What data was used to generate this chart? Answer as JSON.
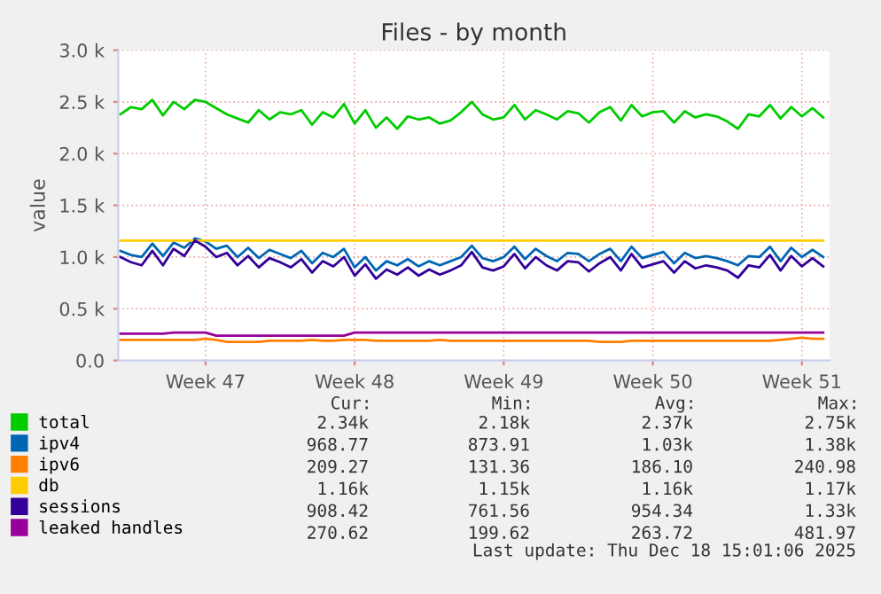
{
  "chart_data": {
    "type": "line",
    "title": "Files - by month",
    "ylabel": "value",
    "categories": [
      null,
      null,
      null,
      null,
      null,
      null,
      null,
      null,
      "Week 47",
      null,
      null,
      null,
      null,
      null,
      null,
      null,
      null,
      null,
      null,
      null,
      null,
      null,
      "Week 48",
      null,
      null,
      null,
      null,
      null,
      null,
      null,
      null,
      null,
      null,
      null,
      null,
      null,
      "Week 49",
      null,
      null,
      null,
      null,
      null,
      null,
      null,
      null,
      null,
      null,
      null,
      null,
      null,
      "Week 50",
      null,
      null,
      null,
      null,
      null,
      null,
      null,
      null,
      null,
      null,
      null,
      null,
      null,
      "Week 51",
      null,
      null
    ],
    "series": [
      {
        "name": "total",
        "color": "#00cc00",
        "values": [
          2380,
          2450,
          2430,
          2520,
          2370,
          2500,
          2430,
          2520,
          2500,
          2440,
          2380,
          2340,
          2300,
          2420,
          2330,
          2400,
          2380,
          2420,
          2280,
          2400,
          2350,
          2480,
          2290,
          2420,
          2250,
          2350,
          2240,
          2360,
          2330,
          2350,
          2290,
          2320,
          2400,
          2500,
          2380,
          2330,
          2350,
          2470,
          2330,
          2420,
          2380,
          2330,
          2410,
          2390,
          2300,
          2400,
          2450,
          2320,
          2470,
          2360,
          2400,
          2410,
          2300,
          2410,
          2350,
          2380,
          2360,
          2310,
          2240,
          2380,
          2360,
          2470,
          2340,
          2450,
          2360,
          2440,
          2350
        ]
      },
      {
        "name": "ipv4",
        "color": "#0066b3",
        "values": [
          1060,
          1020,
          1000,
          1130,
          1010,
          1140,
          1090,
          1180,
          1150,
          1080,
          1110,
          1000,
          1090,
          990,
          1070,
          1030,
          990,
          1060,
          940,
          1040,
          1000,
          1080,
          900,
          1000,
          870,
          960,
          920,
          980,
          910,
          960,
          920,
          960,
          1000,
          1110,
          990,
          960,
          1000,
          1100,
          980,
          1080,
          1010,
          960,
          1040,
          1030,
          960,
          1030,
          1080,
          960,
          1100,
          990,
          1020,
          1050,
          940,
          1040,
          990,
          1010,
          990,
          960,
          920,
          1010,
          1000,
          1100,
          960,
          1090,
          1000,
          1070,
          1000
        ]
      },
      {
        "name": "ipv6",
        "color": "#ff8000",
        "values": [
          200,
          200,
          200,
          200,
          200,
          200,
          200,
          200,
          210,
          200,
          180,
          180,
          180,
          180,
          190,
          190,
          190,
          190,
          200,
          190,
          190,
          200,
          200,
          200,
          190,
          190,
          190,
          190,
          190,
          190,
          200,
          190,
          190,
          190,
          190,
          190,
          190,
          190,
          190,
          190,
          190,
          190,
          190,
          190,
          190,
          180,
          180,
          180,
          190,
          190,
          190,
          190,
          190,
          190,
          190,
          190,
          190,
          190,
          190,
          190,
          190,
          190,
          200,
          210,
          220,
          210,
          210
        ]
      },
      {
        "name": "db",
        "color": "#ffcc00",
        "values": [
          1160,
          1160,
          1160,
          1160,
          1160,
          1160,
          1160,
          1160,
          1160,
          1160,
          1160,
          1160,
          1160,
          1160,
          1160,
          1160,
          1160,
          1160,
          1160,
          1160,
          1160,
          1160,
          1160,
          1160,
          1160,
          1160,
          1160,
          1160,
          1160,
          1160,
          1160,
          1160,
          1160,
          1160,
          1160,
          1160,
          1160,
          1160,
          1160,
          1160,
          1160,
          1160,
          1160,
          1160,
          1160,
          1160,
          1160,
          1160,
          1160,
          1160,
          1160,
          1160,
          1160,
          1160,
          1160,
          1160,
          1160,
          1160,
          1160,
          1160,
          1160,
          1160,
          1160,
          1160,
          1160,
          1160,
          1160
        ]
      },
      {
        "name": "sessions",
        "color": "#330099",
        "values": [
          1000,
          950,
          920,
          1060,
          920,
          1080,
          1010,
          1160,
          1100,
          1000,
          1040,
          920,
          1010,
          900,
          990,
          950,
          900,
          980,
          850,
          960,
          910,
          1000,
          820,
          930,
          790,
          880,
          830,
          900,
          820,
          880,
          830,
          870,
          920,
          1050,
          900,
          870,
          910,
          1030,
          890,
          1000,
          920,
          870,
          960,
          950,
          860,
          940,
          1000,
          870,
          1030,
          900,
          930,
          960,
          850,
          960,
          890,
          920,
          900,
          870,
          800,
          920,
          900,
          1020,
          870,
          1010,
          910,
          990,
          910
        ]
      },
      {
        "name": "leaked handles",
        "color": "#990099",
        "values": [
          260,
          260,
          260,
          260,
          260,
          270,
          270,
          270,
          270,
          240,
          240,
          240,
          240,
          240,
          240,
          240,
          240,
          240,
          240,
          240,
          240,
          240,
          270,
          270,
          270,
          270,
          270,
          270,
          270,
          270,
          270,
          270,
          270,
          270,
          270,
          270,
          270,
          270,
          270,
          270,
          270,
          270,
          270,
          270,
          270,
          270,
          270,
          270,
          270,
          270,
          270,
          270,
          270,
          270,
          270,
          270,
          270,
          270,
          270,
          270,
          270,
          270,
          270,
          270,
          270,
          270,
          270
        ]
      }
    ],
    "ylim": [
      0,
      3000
    ],
    "yticks": [
      {
        "value": 0,
        "label": "0.0"
      },
      {
        "value": 500,
        "label": "0.5 k"
      },
      {
        "value": 1000,
        "label": "1.0 k"
      },
      {
        "value": 1500,
        "label": "1.5 k"
      },
      {
        "value": 2000,
        "label": "2.0 k"
      },
      {
        "value": 2500,
        "label": "2.5 k"
      },
      {
        "value": 3000,
        "label": "3.0 k"
      }
    ],
    "grid": true,
    "legend": "bottom left",
    "marker": "none",
    "line_style": "solid",
    "annotations": [
      "Cur:",
      "Min:",
      "Avg:",
      "Max:",
      "2.34k",
      "2.18k",
      "2.37k",
      "2.75k",
      "968.77",
      "873.91",
      "1.03k",
      "1.38k",
      "209.27",
      "131.36",
      "186.10",
      "240.98",
      "1.16k",
      "1.15k",
      "1.16k",
      "1.17k",
      "908.42",
      "761.56",
      "954.34",
      "1.33k",
      "270.62",
      "199.62",
      "263.72",
      "481.97",
      "Last update: Thu Dec 18 15:01:06 2025"
    ]
  }
}
